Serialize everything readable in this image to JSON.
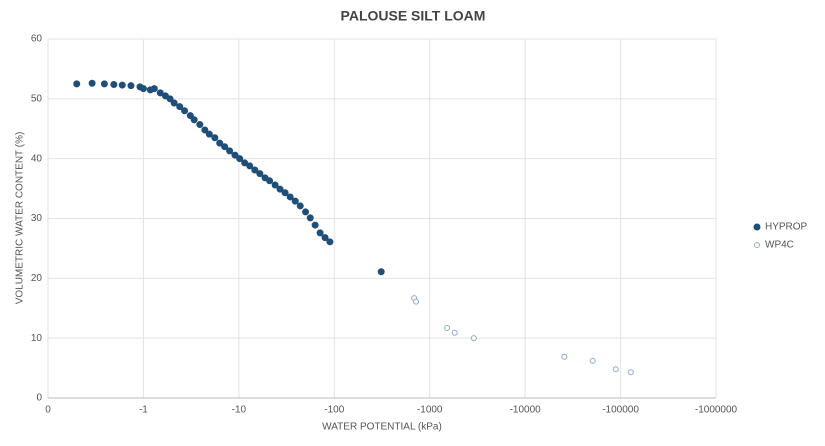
{
  "chart_data": {
    "type": "scatter",
    "title": "PALOUSE SILT LOAM",
    "x_label": "WATER POTENTIAL (kPa)",
    "y_label": "VOLUMETRIC WATER CONTENT (%)",
    "xscale": "log",
    "xlim": [
      -0.1,
      -1000000
    ],
    "ylim": [
      0,
      60
    ],
    "xticks": [
      {
        "value": -0.1,
        "label": "0"
      },
      -1,
      -10,
      -100,
      -1000,
      -10000,
      -100000,
      -1000000
    ],
    "yticks": [
      0,
      10,
      20,
      30,
      40,
      50,
      60
    ],
    "grid": true,
    "legend": "right",
    "series": [
      {
        "name": "HYPROP",
        "color": "#1f4e79",
        "marker": "filled",
        "x": [
          -0.2,
          -0.29,
          -0.39,
          -0.49,
          -0.6,
          -0.74,
          -0.92,
          -1,
          -1.18,
          -1.3,
          -1.5,
          -1.7,
          -1.9,
          -2.1,
          -2.4,
          -2.7,
          -3.1,
          -3.4,
          -3.9,
          -4.4,
          -4.9,
          -5.6,
          -6.3,
          -7.1,
          -8,
          -9.1,
          -10.2,
          -11.5,
          -13,
          -14.7,
          -16.6,
          -18.8,
          -21,
          -24,
          -27,
          -30.5,
          -34.5,
          -39,
          -44,
          -50,
          -56,
          -63,
          -71,
          -80,
          -90,
          -310
        ],
        "values": [
          52.5,
          52.6,
          52.5,
          52.4,
          52.3,
          52.2,
          52.0,
          51.7,
          51.5,
          51.7,
          51.0,
          50.5,
          50.0,
          49.3,
          48.7,
          48.0,
          47.2,
          46.5,
          45.7,
          44.8,
          44.1,
          43.5,
          42.6,
          42.0,
          41.3,
          40.6,
          40.0,
          39.3,
          38.8,
          38.1,
          37.5,
          36.8,
          36.3,
          35.6,
          34.9,
          34.3,
          33.6,
          32.9,
          32.1,
          31.1,
          30.1,
          28.9,
          27.6,
          26.8,
          26.1,
          21.1
        ]
      },
      {
        "name": "WP4C",
        "color": "#8fa9c8",
        "marker": "open",
        "x": [
          -687,
          -720,
          -1520,
          -1830,
          -2900,
          -25700,
          -51000,
          -89000,
          -128000
        ],
        "values": [
          16.7,
          16.1,
          11.7,
          10.9,
          10.0,
          6.9,
          6.2,
          4.8,
          4.3
        ]
      }
    ]
  }
}
